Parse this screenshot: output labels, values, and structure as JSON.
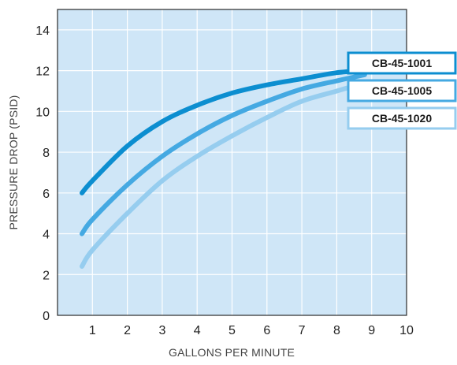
{
  "chart_data": {
    "type": "line",
    "xlabel": "GALLONS PER MINUTE",
    "ylabel": "PRESSURE DROP (PSID)",
    "xlim": [
      0,
      10
    ],
    "ylim": [
      0,
      15
    ],
    "x_ticks": [
      1,
      2,
      3,
      4,
      5,
      6,
      7,
      8,
      9,
      10
    ],
    "y_ticks": [
      0,
      2,
      4,
      6,
      8,
      10,
      12,
      14
    ],
    "grid": true,
    "background": "#cfe6f7",
    "legend_placement": "right, at line ends",
    "series": [
      {
        "name": "CB-45-1001",
        "color": "#0c8ed0",
        "x": [
          0.7,
          1,
          2,
          3,
          4,
          5,
          6,
          7,
          8,
          8.8
        ],
        "y": [
          6.0,
          6.6,
          8.3,
          9.5,
          10.3,
          10.9,
          11.3,
          11.6,
          11.9,
          12.0
        ]
      },
      {
        "name": "CB-45-1005",
        "color": "#45a9e2",
        "x": [
          0.7,
          1,
          2,
          3,
          4,
          5,
          6,
          7,
          8,
          8.8
        ],
        "y": [
          4.0,
          4.7,
          6.4,
          7.8,
          8.9,
          9.8,
          10.5,
          11.1,
          11.5,
          11.8
        ]
      },
      {
        "name": "CB-45-1020",
        "color": "#96cdef",
        "x": [
          0.7,
          1,
          2,
          3,
          4,
          5,
          6,
          7,
          8,
          8.8
        ],
        "y": [
          2.4,
          3.2,
          5.0,
          6.6,
          7.8,
          8.8,
          9.7,
          10.5,
          11.0,
          11.4
        ]
      }
    ]
  }
}
